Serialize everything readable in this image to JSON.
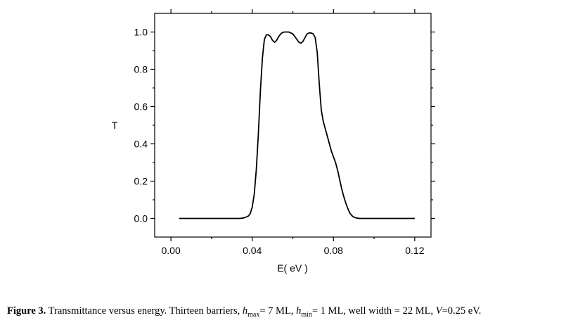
{
  "chart_data": {
    "type": "line",
    "xlabel": "E( eV )",
    "ylabel": "T",
    "xlim": [
      -0.008,
      0.128
    ],
    "ylim": [
      -0.1,
      1.1
    ],
    "x_ticks": [
      0.0,
      0.04,
      0.08,
      0.12
    ],
    "x_tick_labels": [
      "0.00",
      "0.04",
      "0.08",
      "0.12"
    ],
    "y_ticks": [
      0.0,
      0.2,
      0.4,
      0.6,
      0.8,
      1.0
    ],
    "y_tick_labels": [
      "0.0",
      "0.2",
      "0.4",
      "0.6",
      "0.8",
      "1.0"
    ],
    "grid": false,
    "series": [
      {
        "color": "#000000",
        "x": [
          0.004,
          0.01,
          0.02,
          0.03,
          0.034,
          0.036,
          0.038,
          0.039,
          0.04,
          0.041,
          0.042,
          0.043,
          0.044,
          0.045,
          0.046,
          0.047,
          0.048,
          0.049,
          0.05,
          0.051,
          0.052,
          0.053,
          0.054,
          0.055,
          0.056,
          0.057,
          0.058,
          0.06,
          0.062,
          0.063,
          0.064,
          0.065,
          0.066,
          0.067,
          0.068,
          0.069,
          0.07,
          0.071,
          0.072,
          0.073,
          0.074,
          0.075,
          0.076,
          0.0765,
          0.077,
          0.078,
          0.079,
          0.08,
          0.081,
          0.082,
          0.083,
          0.084,
          0.085,
          0.086,
          0.087,
          0.088,
          0.089,
          0.09,
          0.091,
          0.092,
          0.093,
          0.095,
          0.097,
          0.1,
          0.105,
          0.11,
          0.115,
          0.12
        ],
        "y": [
          0.0,
          0.0,
          0.0,
          0.0,
          0.0,
          0.003,
          0.012,
          0.025,
          0.06,
          0.13,
          0.26,
          0.45,
          0.68,
          0.86,
          0.96,
          0.985,
          0.985,
          0.975,
          0.955,
          0.945,
          0.955,
          0.975,
          0.99,
          0.998,
          1.0,
          1.0,
          1.0,
          0.99,
          0.96,
          0.945,
          0.94,
          0.95,
          0.97,
          0.99,
          0.995,
          0.995,
          0.99,
          0.97,
          0.89,
          0.72,
          0.58,
          0.52,
          0.48,
          0.46,
          0.44,
          0.4,
          0.36,
          0.33,
          0.3,
          0.26,
          0.21,
          0.16,
          0.12,
          0.085,
          0.055,
          0.03,
          0.015,
          0.007,
          0.003,
          0.001,
          0.0,
          0.0,
          0.0,
          0.0,
          0.0,
          0.0,
          0.0,
          0.0
        ]
      }
    ]
  },
  "caption": {
    "label": "Figure 3.",
    "text_1": " Transmittance versus energy. Thirteen barriers, ",
    "hmax_var": "h",
    "hmax_sub": "max",
    "text_2": "= 7 ML, ",
    "hmin_var": "h",
    "hmin_sub": "min",
    "text_3": "= 1 ML, well width = 22 ML, ",
    "v_var": "V",
    "text_4": "=0.25 eV."
  }
}
